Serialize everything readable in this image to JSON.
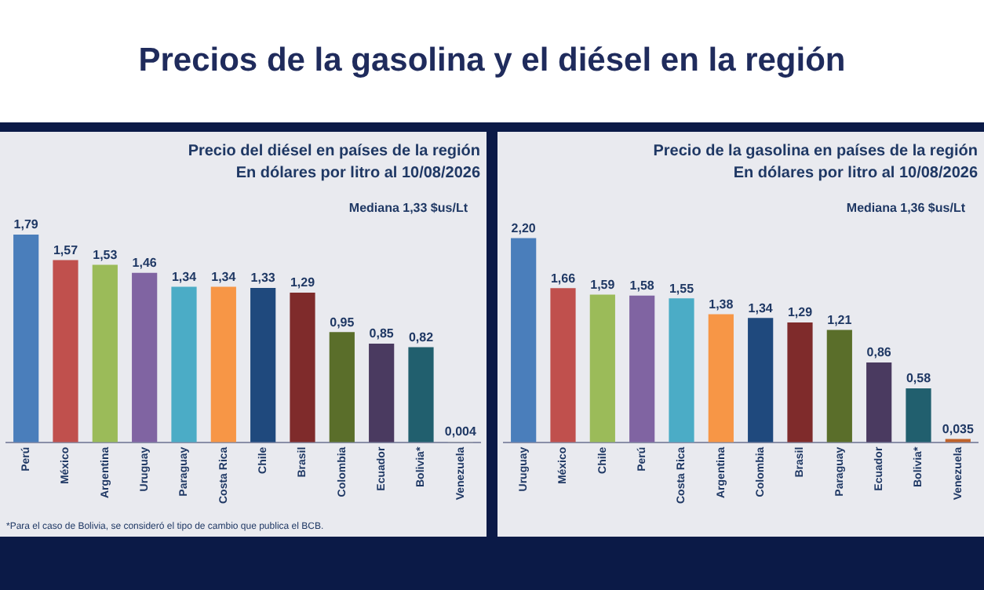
{
  "chart_data": [
    {
      "type": "other",
      "title": "Precios de la gasolina y el diésel en la región"
    },
    {
      "type": "bar",
      "title": "Precio del diésel en países de la región",
      "subtitle": "En dólares por litro al 10/08/2026",
      "categories": [
        "Perú",
        "México",
        "Argentina",
        "Uruguay",
        "Paraguay",
        "Costa Rica",
        "Chile",
        "Brasil",
        "Colombia",
        "Ecuador",
        "Bolivia*",
        "Venezuela"
      ],
      "values": [
        1.79,
        1.57,
        1.53,
        1.46,
        1.34,
        1.34,
        1.33,
        1.29,
        0.95,
        0.85,
        0.82,
        0.004
      ],
      "colors": [
        "#4a7ebb",
        "#c0504d",
        "#9bbb59",
        "#8064a2",
        "#4bacc6",
        "#f79646",
        "#1f497d",
        "#7f2b2b",
        "#5a6e2a",
        "#4a3a60",
        "#215f6e",
        "#a6a6a6"
      ],
      "value_labels": [
        "1,79",
        "1,57",
        "1,53",
        "1,46",
        "1,34",
        "1,34",
        "1,33",
        "1,29",
        "0,95",
        "0,85",
        "0,82",
        "0,004"
      ],
      "annotations": [
        "Mediana 1,33 $us/Lt",
        "*Para el caso de Bolivia, se consideró el tipo de cambio que publica el BCB."
      ],
      "tick_labels": "x",
      "grid": false,
      "legend": false
    },
    {
      "type": "bar",
      "title": "Precio de la gasolina en países de la región",
      "subtitle": "En dólares por litro al 10/08/2026",
      "categories": [
        "Uruguay",
        "México",
        "Chile",
        "Perú",
        "Costa Rica",
        "Argentina",
        "Colombia",
        "Brasil",
        "Paraguay",
        "Ecuador",
        "Bolivia*",
        "Venezuela"
      ],
      "values": [
        2.2,
        1.66,
        1.59,
        1.58,
        1.55,
        1.38,
        1.34,
        1.29,
        1.21,
        0.86,
        0.58,
        0.035
      ],
      "colors": [
        "#4a7ebb",
        "#c0504d",
        "#9bbb59",
        "#8064a2",
        "#4bacc6",
        "#f79646",
        "#1f497d",
        "#7f2b2b",
        "#5a6e2a",
        "#4a3a60",
        "#215f6e",
        "#c0622a"
      ],
      "value_labels": [
        "2,20",
        "1,66",
        "1,59",
        "1,58",
        "1,55",
        "1,38",
        "1,34",
        "1,29",
        "1,21",
        "0,86",
        "0,58",
        "0,035"
      ],
      "annotations": [
        "Mediana 1,36 $us/Lt"
      ],
      "tick_labels": "x",
      "grid": false,
      "legend": false
    }
  ]
}
